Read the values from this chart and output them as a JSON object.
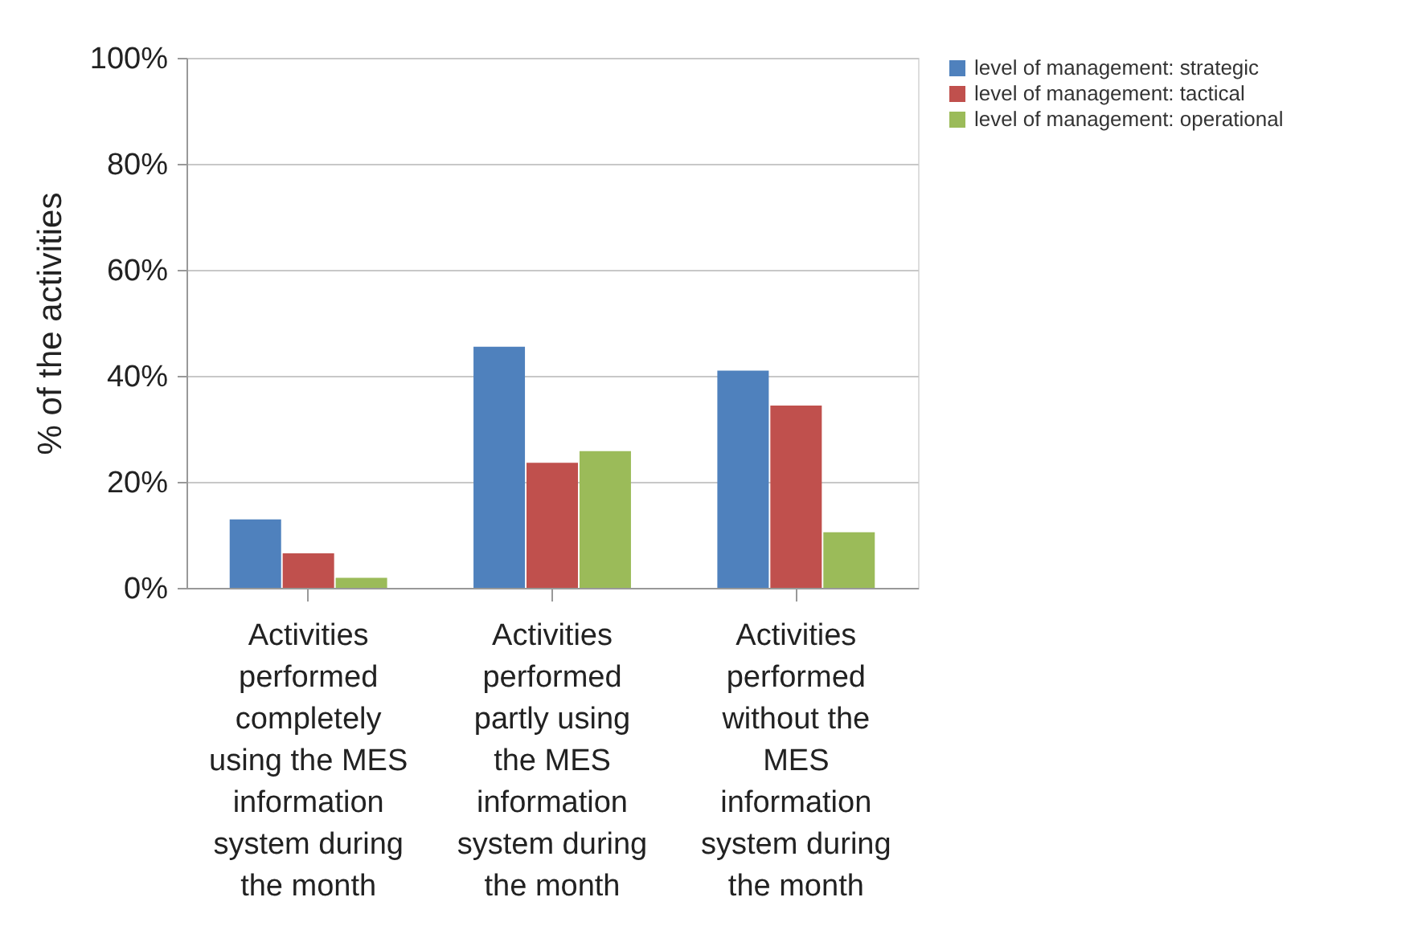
{
  "chart_data": {
    "type": "bar",
    "ylabel": "% of the activities",
    "categories": [
      "Activities performed completely using the MES information system during the month",
      "Activities performed partly using the MES information system during the month",
      "Activities performed without the MES information system during the month"
    ],
    "series": [
      {
        "name": "level of management: strategic",
        "color": "#4f81bd",
        "values": [
          12.9,
          45.5,
          41.0
        ]
      },
      {
        "name": "level of management: tactical",
        "color": "#c0504d",
        "values": [
          6.5,
          23.6,
          34.4
        ]
      },
      {
        "name": "level of management: operational",
        "color": "#9bbb59",
        "values": [
          1.9,
          25.8,
          10.5
        ]
      }
    ],
    "ylim": [
      0,
      100
    ],
    "yticks": [
      {
        "value": 0,
        "label": "0%"
      },
      {
        "value": 20,
        "label": "20%"
      },
      {
        "value": 40,
        "label": "40%"
      },
      {
        "value": 60,
        "label": "60%"
      },
      {
        "value": 80,
        "label": "80%"
      },
      {
        "value": 100,
        "label": "100%"
      }
    ],
    "grid": "y",
    "legend": "right"
  }
}
